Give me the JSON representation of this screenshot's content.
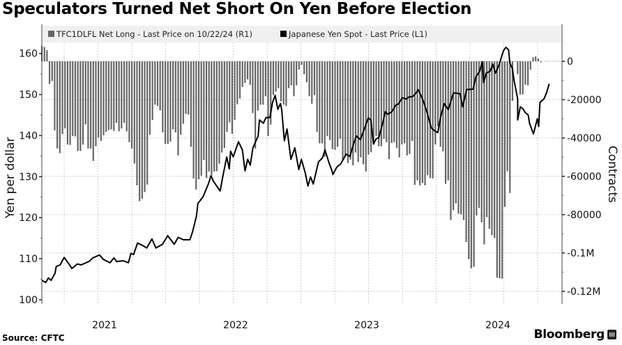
{
  "header": {
    "title": "Speculators Turned Net Short On Yen Before Election"
  },
  "footer": {
    "source": "Source: CFTC",
    "brand": "Bloomberg"
  },
  "chart_data": {
    "type": "bar+line",
    "title": "Speculators Turned Net Short On Yen Before Election",
    "legend": [
      {
        "label": "TFC1DLFL Net Long - Last Price on 10/22/24 (R1)",
        "color": "#666666",
        "type": "bar",
        "axis": "right"
      },
      {
        "label": "Japanese Yen Spot - Last Price (L1)",
        "color": "#000000",
        "type": "line",
        "axis": "left"
      }
    ],
    "legend_placement": "top",
    "x_axis": {
      "ticks": [
        "2021",
        "2022",
        "2023",
        "2024"
      ]
    },
    "left_axis": {
      "label": "Yen per dollar",
      "ylim": [
        100,
        160
      ],
      "ticks": [
        "100",
        "110",
        "120",
        "130",
        "140",
        "150",
        "160"
      ],
      "tick_values": [
        100,
        110,
        120,
        130,
        140,
        150,
        160
      ]
    },
    "right_axis": {
      "label": "Contracts",
      "ylim": [
        -125000,
        15000
      ],
      "ticks": [
        "0",
        "-20000",
        "-40000",
        "-60000",
        "-80000",
        "-0.1M",
        "-0.12M"
      ],
      "tick_values": [
        0,
        -20000,
        -40000,
        -60000,
        -80000,
        -100000,
        -120000
      ]
    },
    "grid": true,
    "net_long": {
      "frequency": "weekly",
      "last_date": "10/22/24",
      "values": [
        8000,
        7500,
        5800,
        -11800,
        -10300,
        -36000,
        -45500,
        -47900,
        -38000,
        -35000,
        -43400,
        -43600,
        -39000,
        -39200,
        -46800,
        -46800,
        -43400,
        -32900,
        -45500,
        -45500,
        -52000,
        -44300,
        -39700,
        -41500,
        -38600,
        -36800,
        -35900,
        -35500,
        -36300,
        -32100,
        -36500,
        -35000,
        -32100,
        -36500,
        -42200,
        -45500,
        -53300,
        -64700,
        -72900,
        -71700,
        -68200,
        -64300,
        -38300,
        -30600,
        -22600,
        -23300,
        -25600,
        -37100,
        -43100,
        -43100,
        -41900,
        -35500,
        -37100,
        -49100,
        -38300,
        -32600,
        -27400,
        -27800,
        -44600,
        -61100,
        -66900,
        -61500,
        -59700,
        -51500,
        -60900,
        -57500,
        -59400,
        -57500,
        -57300,
        -53400,
        -47600,
        -45200,
        -36800,
        -31800,
        -37800,
        -30600,
        -22400,
        -19400,
        -13400,
        -11300,
        -9400,
        -12200,
        -27000,
        -45500,
        -25700,
        -22600,
        -22600,
        -18200,
        -39000,
        -33000,
        -17600,
        -15800,
        -14000,
        -20900,
        -22600,
        -23300,
        -14000,
        -12500,
        -18200,
        -12500,
        -4300,
        -1900,
        -6700,
        -10900,
        -18200,
        -22100,
        -17600,
        -36800,
        -42800,
        -42800,
        -49700,
        -39000,
        -41000,
        -45800,
        -46200,
        -44600,
        -40400,
        -51900,
        -49800,
        -53100,
        -51300,
        -54300,
        -47600,
        -52500,
        -50100,
        -53700,
        -57500,
        -48600,
        -47400,
        -42600,
        -39000,
        -44300,
        -44300,
        -40400,
        -42200,
        -51000,
        -42600,
        -42200,
        -45200,
        -50100,
        -43400,
        -42800,
        -49100,
        -48300,
        -41600,
        -64500,
        -62100,
        -64700,
        -63500,
        -64700,
        -59400,
        -60900,
        -61100,
        -43400,
        -33800,
        -44600,
        -47000,
        -63900,
        -62100,
        -82800,
        -77700,
        -74100,
        -79500,
        -79900,
        -82800,
        -94300,
        -103200,
        -108000,
        -107200,
        -80400,
        -76500,
        -84000,
        -95500,
        -81300,
        -87400,
        -90700,
        -92200,
        -112900,
        -113200,
        -113400,
        -75900,
        -57300,
        -68700,
        -20600,
        0,
        -6700,
        -17300,
        -17300,
        -12200,
        -12500,
        -4300,
        2200,
        2500,
        1500,
        -500
      ]
    },
    "yen_spot": {
      "x_unit": "year",
      "points": [
        [
          2021.0,
          104.7
        ],
        [
          2021.03,
          104.2
        ],
        [
          2021.05,
          105.3
        ],
        [
          2021.07,
          104.7
        ],
        [
          2021.1,
          106.4
        ],
        [
          2021.11,
          108.1
        ],
        [
          2021.14,
          108.5
        ],
        [
          2021.17,
          110.3
        ],
        [
          2021.2,
          109.0
        ],
        [
          2021.23,
          107.6
        ],
        [
          2021.27,
          108.7
        ],
        [
          2021.3,
          108.5
        ],
        [
          2021.36,
          109.3
        ],
        [
          2021.39,
          110.2
        ],
        [
          2021.44,
          110.9
        ],
        [
          2021.47,
          109.8
        ],
        [
          2021.52,
          109.0
        ],
        [
          2021.55,
          110.2
        ],
        [
          2021.57,
          109.3
        ],
        [
          2021.62,
          109.5
        ],
        [
          2021.66,
          109.0
        ],
        [
          2021.68,
          111.3
        ],
        [
          2021.7,
          111.0
        ],
        [
          2021.73,
          113.8
        ],
        [
          2021.77,
          113.2
        ],
        [
          2021.8,
          112.6
        ],
        [
          2021.84,
          114.8
        ],
        [
          2021.87,
          112.6
        ],
        [
          2021.92,
          113.5
        ],
        [
          2021.96,
          115.6
        ],
        [
          2022.01,
          113.5
        ],
        [
          2022.04,
          115.2
        ],
        [
          2022.08,
          114.6
        ],
        [
          2022.13,
          114.6
        ],
        [
          2022.15,
          116.6
        ],
        [
          2022.18,
          120.4
        ],
        [
          2022.19,
          123.4
        ],
        [
          2022.23,
          125.1
        ],
        [
          2022.27,
          128.2
        ],
        [
          2022.29,
          130.2
        ],
        [
          2022.31,
          128.8
        ],
        [
          2022.36,
          126.5
        ],
        [
          2022.38,
          129.9
        ],
        [
          2022.41,
          134.8
        ],
        [
          2022.43,
          131.9
        ],
        [
          2022.44,
          136.2
        ],
        [
          2022.46,
          134.8
        ],
        [
          2022.5,
          138.5
        ],
        [
          2022.53,
          136.5
        ],
        [
          2022.55,
          131.4
        ],
        [
          2022.57,
          134.2
        ],
        [
          2022.59,
          132.8
        ],
        [
          2022.61,
          137.0
        ],
        [
          2022.65,
          139.9
        ],
        [
          2022.66,
          143.8
        ],
        [
          2022.69,
          143.0
        ],
        [
          2022.71,
          144.4
        ],
        [
          2022.74,
          144.4
        ],
        [
          2022.76,
          148.1
        ],
        [
          2022.78,
          149.8
        ],
        [
          2022.8,
          146.4
        ],
        [
          2022.82,
          147.8
        ],
        [
          2022.83,
          146.3
        ],
        [
          2022.85,
          138.7
        ],
        [
          2022.87,
          141.6
        ],
        [
          2022.9,
          134.2
        ],
        [
          2022.93,
          137.0
        ],
        [
          2022.96,
          131.7
        ],
        [
          2022.98,
          134.2
        ],
        [
          2023.01,
          130.8
        ],
        [
          2023.03,
          127.7
        ],
        [
          2023.05,
          129.9
        ],
        [
          2023.07,
          128.2
        ],
        [
          2023.09,
          130.8
        ],
        [
          2023.11,
          133.6
        ],
        [
          2023.14,
          134.5
        ],
        [
          2023.16,
          136.5
        ],
        [
          2023.19,
          133.4
        ],
        [
          2023.21,
          131.7
        ],
        [
          2023.22,
          130.5
        ],
        [
          2023.25,
          132.3
        ],
        [
          2023.28,
          133.1
        ],
        [
          2023.3,
          134.2
        ],
        [
          2023.32,
          135.5
        ],
        [
          2023.35,
          134.9
        ],
        [
          2023.38,
          138.2
        ],
        [
          2023.4,
          139.9
        ],
        [
          2023.43,
          139.0
        ],
        [
          2023.46,
          141.6
        ],
        [
          2023.49,
          144.3
        ],
        [
          2023.51,
          143.8
        ],
        [
          2023.53,
          137.9
        ],
        [
          2023.55,
          139.2
        ],
        [
          2023.57,
          139.5
        ],
        [
          2023.6,
          143.0
        ],
        [
          2023.62,
          145.8
        ],
        [
          2023.64,
          145.2
        ],
        [
          2023.67,
          145.8
        ],
        [
          2023.7,
          147.4
        ],
        [
          2023.72,
          147.7
        ],
        [
          2023.75,
          149.2
        ],
        [
          2023.78,
          148.9
        ],
        [
          2023.8,
          149.4
        ],
        [
          2023.83,
          149.5
        ],
        [
          2023.86,
          150.6
        ],
        [
          2023.87,
          151.2
        ],
        [
          2023.89,
          149.9
        ],
        [
          2023.91,
          148.4
        ],
        [
          2023.94,
          145.5
        ],
        [
          2023.97,
          141.9
        ],
        [
          2023.99,
          141.3
        ],
        [
          2024.02,
          140.7
        ],
        [
          2024.04,
          144.3
        ],
        [
          2024.07,
          147.8
        ],
        [
          2024.1,
          146.3
        ],
        [
          2024.14,
          150.4
        ],
        [
          2024.19,
          150.2
        ],
        [
          2024.21,
          147.0
        ],
        [
          2024.24,
          151.2
        ],
        [
          2024.29,
          151.3
        ],
        [
          2024.31,
          154.2
        ],
        [
          2024.34,
          155.7
        ],
        [
          2024.36,
          158.0
        ],
        [
          2024.37,
          152.9
        ],
        [
          2024.39,
          155.2
        ],
        [
          2024.42,
          155.7
        ],
        [
          2024.44,
          157.4
        ],
        [
          2024.46,
          155.2
        ],
        [
          2024.49,
          157.4
        ],
        [
          2024.52,
          160.6
        ],
        [
          2024.54,
          161.5
        ],
        [
          2024.56,
          160.9
        ],
        [
          2024.57,
          157.7
        ],
        [
          2024.59,
          156.3
        ],
        [
          2024.6,
          153.8
        ],
        [
          2024.63,
          148.9
        ],
        [
          2024.63,
          143.8
        ],
        [
          2024.65,
          147.0
        ],
        [
          2024.67,
          146.5
        ],
        [
          2024.69,
          145.5
        ],
        [
          2024.71,
          145.0
        ],
        [
          2024.72,
          143.0
        ],
        [
          2024.75,
          140.4
        ],
        [
          2024.78,
          144.1
        ],
        [
          2024.79,
          142.2
        ],
        [
          2024.8,
          148.1
        ],
        [
          2024.83,
          148.9
        ],
        [
          2024.85,
          150.4
        ],
        [
          2024.87,
          152.6
        ]
      ]
    }
  }
}
